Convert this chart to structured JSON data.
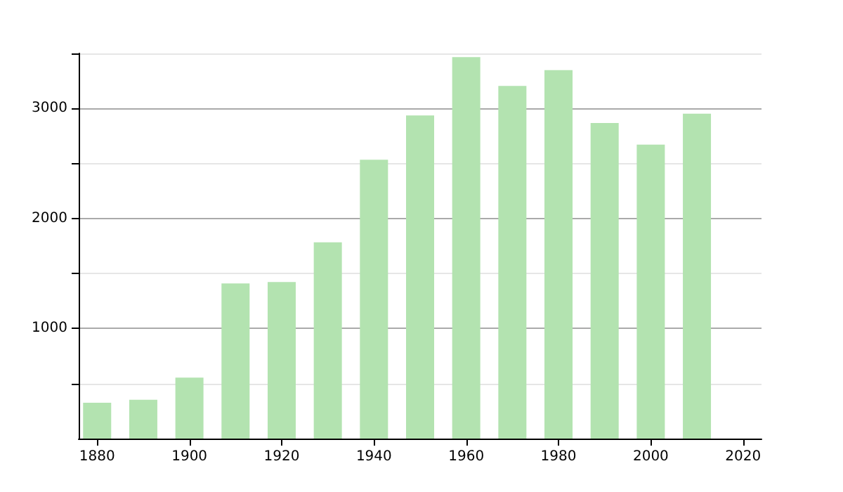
{
  "chart_data": {
    "type": "bar",
    "x": [
      1880,
      1890,
      1900,
      1910,
      1920,
      1930,
      1940,
      1950,
      1960,
      1970,
      1980,
      1990,
      2000,
      2010
    ],
    "values": [
      325,
      353,
      554,
      1410,
      1422,
      1783,
      2534,
      2936,
      3466,
      3205,
      3349,
      2867,
      2671,
      2952
    ],
    "color": "#b3e3b0",
    "xlim": [
      1876,
      2024
    ],
    "xticks": [
      1880,
      1900,
      1920,
      1940,
      1960,
      1980,
      2000,
      2020
    ],
    "ylim": [
      0,
      3500
    ],
    "yticks": [
      {
        "value": 500,
        "label": null
      },
      1000,
      {
        "value": 1500,
        "label": null
      },
      2000,
      {
        "value": 2500,
        "label": null
      },
      3000,
      {
        "value": 3500,
        "label": null
      }
    ],
    "grid": "y"
  }
}
